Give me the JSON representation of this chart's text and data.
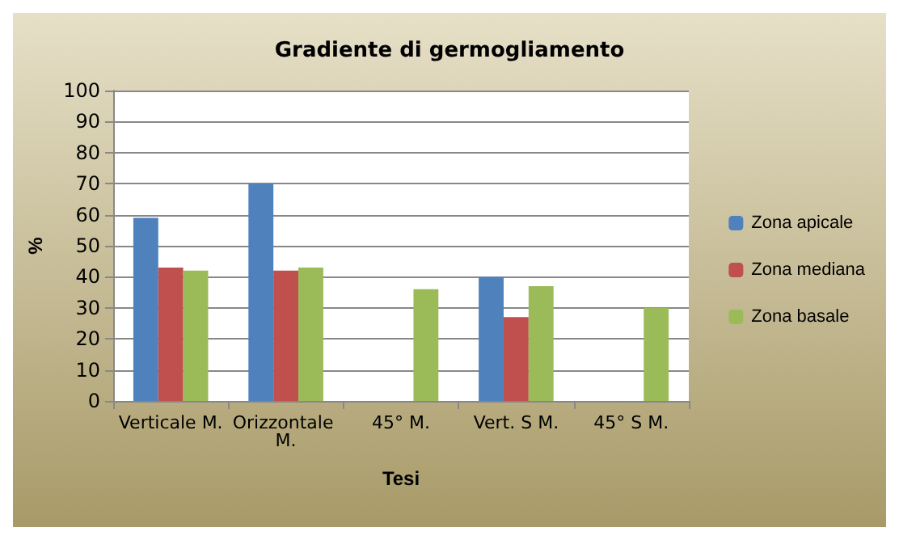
{
  "chart_data": {
    "type": "bar",
    "title": "Gradiente di germogliamento",
    "xlabel": "Tesi",
    "ylabel": "%",
    "categories": [
      "Verticale M.",
      "Orizzontale M.",
      "45° M.",
      "Vert. S M.",
      "45° S M."
    ],
    "series": [
      {
        "name": "Zona apicale",
        "color": "#4f81bd",
        "values": [
          59,
          70,
          0,
          40,
          0
        ]
      },
      {
        "name": "Zona mediana",
        "color": "#c0504d",
        "values": [
          43,
          42,
          0,
          27,
          0
        ]
      },
      {
        "name": "Zona basale",
        "color": "#9bbb59",
        "values": [
          42,
          43,
          36,
          37,
          30
        ]
      }
    ],
    "ylim": [
      0,
      100
    ],
    "yticks": [
      0,
      10,
      20,
      30,
      40,
      50,
      60,
      70,
      80,
      90,
      100
    ],
    "grid": "y",
    "legend": "right"
  }
}
